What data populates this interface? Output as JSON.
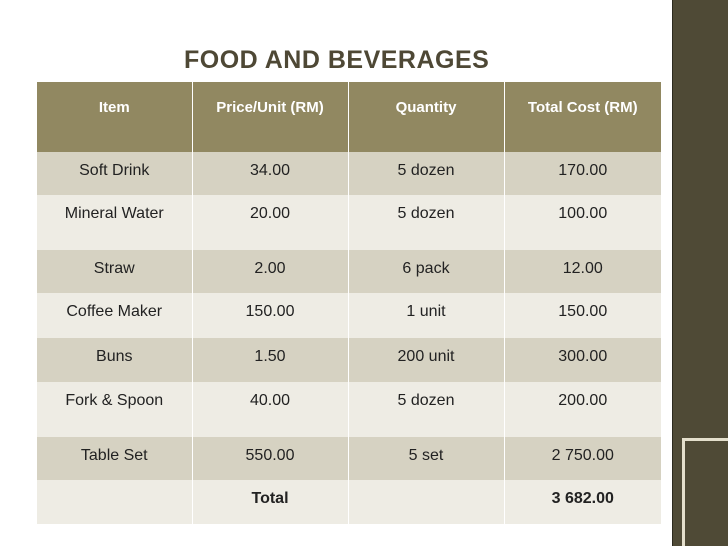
{
  "title": "FOOD AND BEVERAGES",
  "table": {
    "headers": [
      "Item",
      "Price/Unit (RM)",
      "Quantity",
      "Total Cost (RM)"
    ],
    "rows": [
      {
        "item": "Soft Drink",
        "price": "34.00",
        "qty": "5 dozen",
        "total": "170.00"
      },
      {
        "item": "Mineral Water",
        "price": "20.00",
        "qty": "5 dozen",
        "total": "100.00"
      },
      {
        "item": "Straw",
        "price": "2.00",
        "qty": "6 pack",
        "total": "12.00"
      },
      {
        "item": "Coffee Maker",
        "price": "150.00",
        "qty": "1 unit",
        "total": "150.00"
      },
      {
        "item": "Buns",
        "price": "1.50",
        "qty": "200 unit",
        "total": "300.00"
      },
      {
        "item": "Fork & Spoon",
        "price": "40.00",
        "qty": "5 dozen",
        "total": "200.00"
      },
      {
        "item": "Table Set",
        "price": "550.00",
        "qty": "5 set",
        "total": "2 750.00"
      }
    ],
    "total_row": {
      "item": "",
      "price": "Total",
      "qty": "",
      "total": "3 682.00"
    }
  },
  "colors": {
    "header_bg": "#918861",
    "row_dark": "#d6d2c2",
    "row_light": "#eeece4",
    "side_panel": "#4f4a36",
    "title": "#4e4835"
  }
}
